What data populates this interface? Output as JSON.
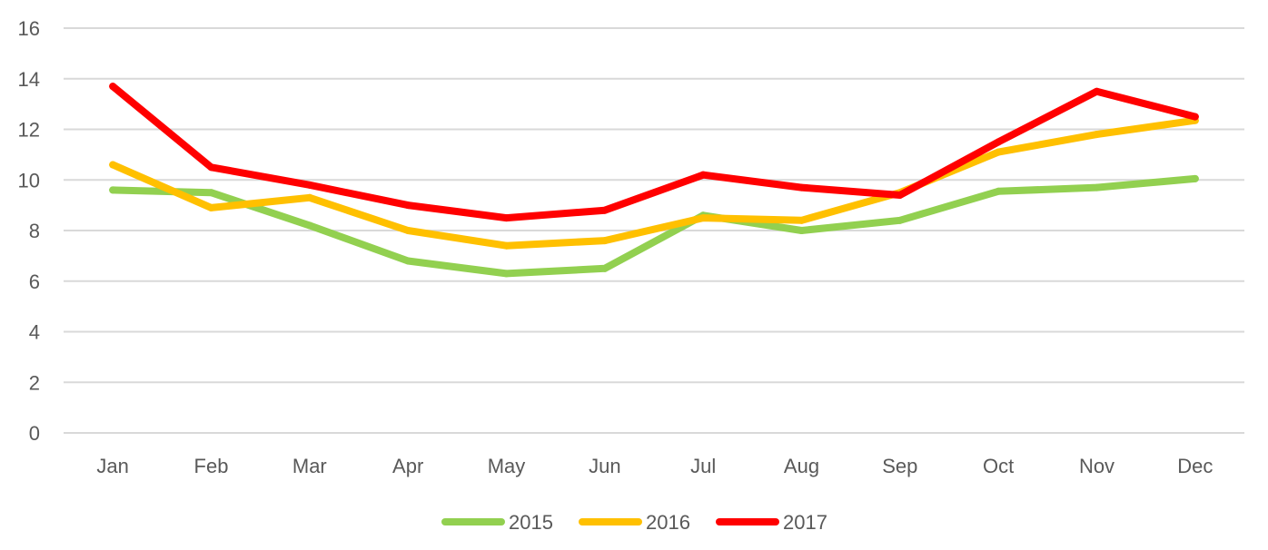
{
  "chart_data": {
    "type": "line",
    "categories": [
      "Jan",
      "Feb",
      "Mar",
      "Apr",
      "May",
      "Jun",
      "Jul",
      "Aug",
      "Sep",
      "Oct",
      "Nov",
      "Dec"
    ],
    "series": [
      {
        "name": "2015",
        "color": "#92d050",
        "values": [
          9.6,
          9.5,
          8.2,
          6.8,
          6.3,
          6.5,
          8.6,
          8.0,
          8.4,
          9.55,
          9.7,
          10.05
        ]
      },
      {
        "name": "2016",
        "color": "#ffc000",
        "values": [
          10.6,
          8.9,
          9.3,
          8.0,
          7.4,
          7.6,
          8.5,
          8.4,
          9.5,
          11.1,
          11.8,
          12.35
        ]
      },
      {
        "name": "2017",
        "color": "#ff0000",
        "values": [
          13.7,
          10.5,
          9.8,
          9.0,
          8.5,
          8.8,
          10.2,
          9.7,
          9.4,
          11.5,
          13.5,
          12.5
        ]
      }
    ],
    "ylim": [
      0,
      16
    ],
    "yticks": [
      0,
      2,
      4,
      6,
      8,
      10,
      12,
      14,
      16
    ],
    "grid": true,
    "legend_position": "bottom",
    "title": "",
    "xlabel": "",
    "ylabel": ""
  }
}
